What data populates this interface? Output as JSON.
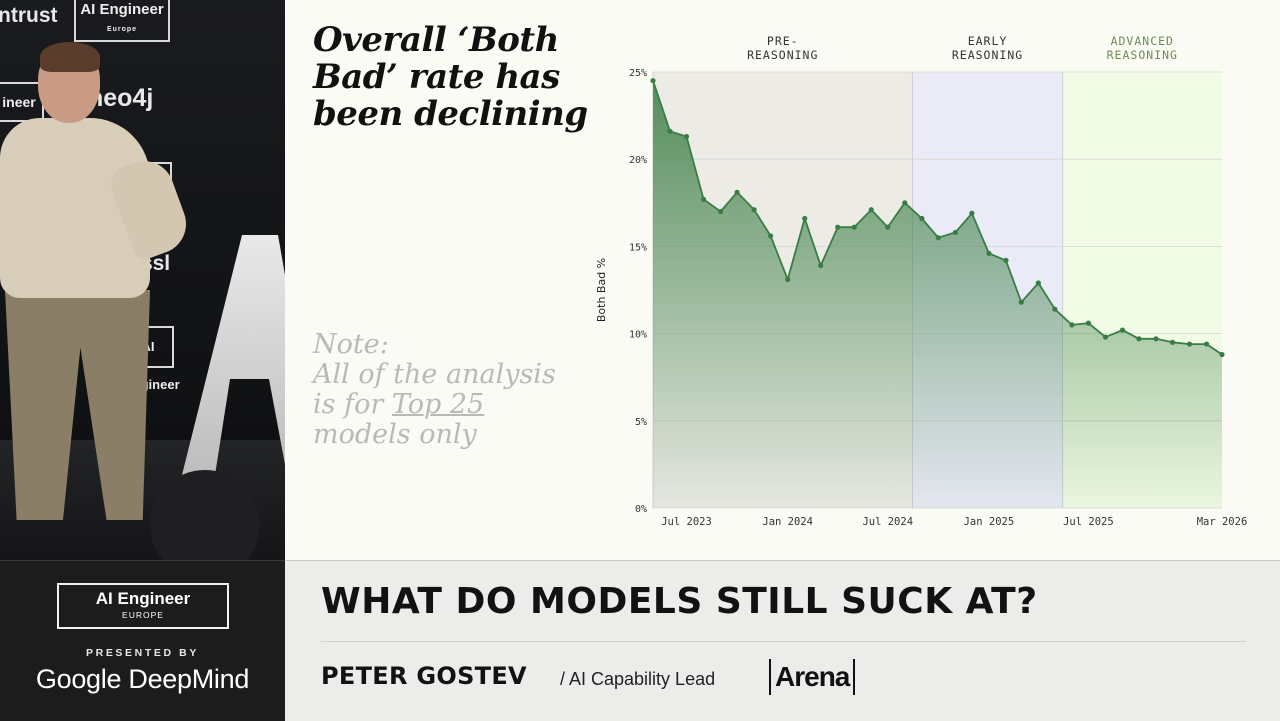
{
  "video": {
    "wall_logos": [
      "ntrust",
      "neo4j",
      "Tessl"
    ],
    "wall_box_labels": [
      "AI Engineer",
      "Europe",
      "ineer",
      "neer",
      "AI Engineer"
    ]
  },
  "slide": {
    "title": "Overall ‘Both Bad’ rate has been declining",
    "note": {
      "line1": "Note:",
      "line2": "All of the analysis",
      "line3_prefix": "is for ",
      "line3_link": "Top 25",
      "line4": "models only"
    }
  },
  "chart_data": {
    "type": "area",
    "ylabel": "Both Bad %",
    "ylim": [
      0,
      25
    ],
    "yticks": [
      "0%",
      "5%",
      "10%",
      "15%",
      "20%",
      "25%"
    ],
    "ytick_values": [
      0,
      5,
      10,
      15,
      20,
      25
    ],
    "xlim": [
      "2023-05-01",
      "2026-03-01"
    ],
    "xticks": [
      {
        "label": "Jul 2023",
        "date": "2023-07-01"
      },
      {
        "label": "Jan 2024",
        "date": "2024-01-01"
      },
      {
        "label": "Jul 2024",
        "date": "2024-07-01"
      },
      {
        "label": "Jan 2025",
        "date": "2025-01-01"
      },
      {
        "label": "Jul 2025",
        "date": "2025-07-01"
      },
      {
        "label": "Mar 2026",
        "date": "2026-03-01"
      }
    ],
    "grid": true,
    "regions": [
      {
        "label": "PRE-\nREASONING",
        "start": "2023-05-01",
        "end": "2024-08-15",
        "color": "#ecebe6",
        "text_color": "#333333"
      },
      {
        "label": "EARLY\nREASONING",
        "start": "2024-08-15",
        "end": "2025-05-15",
        "color": "#ebebf7",
        "text_color": "#333333"
      },
      {
        "label": "ADVANCED\nREASONING",
        "start": "2025-05-15",
        "end": "2026-03-01",
        "color": "#f2fbe6",
        "text_color": "#6e8c4e"
      }
    ],
    "series": [
      {
        "color": "#3a7d44",
        "x": [
          "2023-05-01",
          "2023-06-01",
          "2023-07-01",
          "2023-08-01",
          "2023-09-01",
          "2023-10-01",
          "2023-11-01",
          "2023-12-01",
          "2024-01-01",
          "2024-02-01",
          "2024-03-01",
          "2024-04-01",
          "2024-05-01",
          "2024-06-01",
          "2024-07-01",
          "2024-08-01",
          "2024-09-01",
          "2024-10-01",
          "2024-11-01",
          "2024-12-01",
          "2025-01-01",
          "2025-02-01",
          "2025-03-01",
          "2025-04-01",
          "2025-05-01",
          "2025-06-01",
          "2025-07-01",
          "2025-08-01",
          "2025-09-01",
          "2025-10-01",
          "2025-11-01",
          "2025-12-01",
          "2026-01-01",
          "2026-02-01",
          "2026-03-01"
        ],
        "values": [
          24.5,
          21.6,
          21.3,
          17.7,
          17.0,
          18.1,
          17.1,
          15.6,
          13.1,
          16.6,
          13.9,
          16.1,
          16.1,
          17.1,
          16.1,
          17.5,
          16.6,
          15.5,
          15.8,
          16.9,
          14.6,
          14.2,
          11.8,
          12.9,
          11.4,
          10.5,
          10.6,
          9.8,
          10.2,
          9.7,
          9.7,
          9.5,
          9.4,
          9.4,
          8.8
        ]
      }
    ]
  },
  "lower_third": {
    "event_name": "AI Engineer",
    "event_region": "EUROPE",
    "presented_by": "PRESENTED BY",
    "sponsor": "Google DeepMind",
    "talk_title": "WHAT DO MODELS STILL SUCK AT?",
    "speaker_name": "PETER GOSTEV",
    "speaker_role": "/ AI Capability Lead",
    "company": "Arena"
  }
}
